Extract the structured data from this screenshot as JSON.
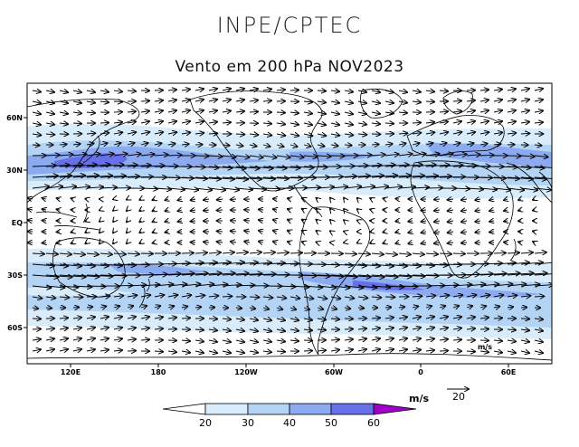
{
  "header": {
    "title": "INPE/CPTEC",
    "subtitle": "Vento em 200 hPa NOV2023"
  },
  "map": {
    "lat_ticks": [
      "60N",
      "30N",
      "EQ",
      "30S",
      "60S"
    ],
    "lon_ticks": [
      "120E",
      "180",
      "120W",
      "60W",
      "0",
      "60E"
    ],
    "inner_unit_label": "m/s",
    "shading_colors": [
      "#ffffff",
      "#d8ecfc",
      "#b4d4f6",
      "#8caaf0",
      "#6670e8",
      "#a000c8"
    ]
  },
  "legend": {
    "unit": "m/s",
    "reference_vector_value": "20",
    "levels": [
      "20",
      "30",
      "40",
      "50",
      "60"
    ]
  }
}
